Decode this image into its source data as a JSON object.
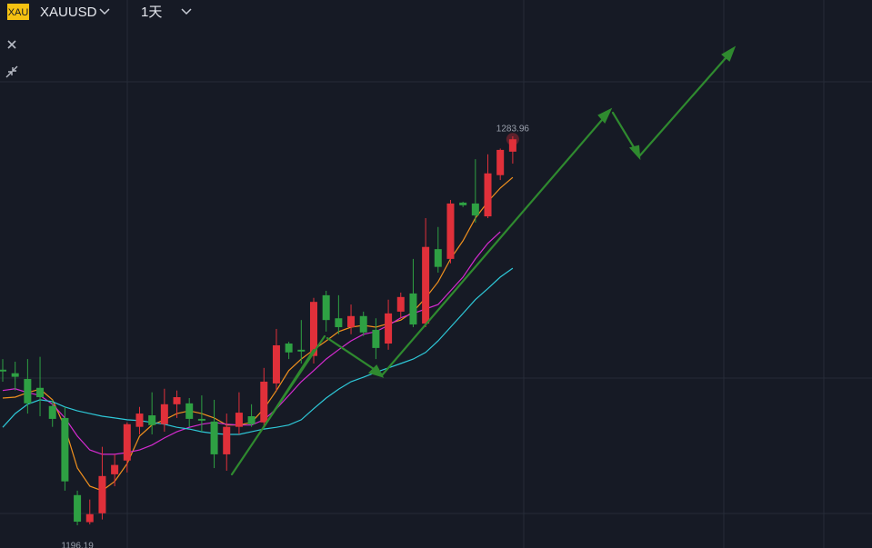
{
  "header": {
    "badge": "XAU",
    "symbol": "XAUUSD",
    "interval": "1天"
  },
  "chart_data": {
    "type": "candlestick",
    "up_color": "#e0303a",
    "down_color": "#2ea043",
    "open": [
      1231.3,
      1230.5,
      1229.2,
      1227.2,
      1223.1,
      1220.4,
      1203.0,
      1196.9,
      1198.9,
      1207.7,
      1210.8,
      1218.4,
      1221.0,
      1219.0,
      1223.5,
      1223.7,
      1220.2,
      1219.6,
      1212.2,
      1218.4,
      1220.8,
      1219.4,
      1228.2,
      1237.2,
      1235.8,
      1234.4,
      1248.1,
      1242.9,
      1240.9,
      1243.4,
      1240.3,
      1237.2,
      1244.4,
      1248.5,
      1241.7,
      1258.5,
      1256.3,
      1269.0,
      1268.8,
      1265.9,
      1275.2,
      1280.5
    ],
    "high": [
      1233.7,
      1233.1,
      1233.7,
      1234.2,
      1224.5,
      1222.9,
      1204.0,
      1202.0,
      1213.9,
      1212.2,
      1219.4,
      1222.9,
      1226.2,
      1227.0,
      1226.6,
      1224.9,
      1225.5,
      1224.5,
      1221.4,
      1226.2,
      1223.5,
      1231.7,
      1240.5,
      1237.6,
      1242.5,
      1247.5,
      1249.1,
      1248.1,
      1246.0,
      1244.4,
      1242.9,
      1247.1,
      1248.7,
      1256.3,
      1265.5,
      1263.5,
      1269.6,
      1269.2,
      1278.8,
      1279.9,
      1281.2,
      1283.96
    ],
    "low": [
      1228.6,
      1226.6,
      1221.4,
      1220.8,
      1218.4,
      1204.0,
      1196.19,
      1196.4,
      1197.5,
      1205.0,
      1208.1,
      1216.7,
      1216.7,
      1217.3,
      1220.4,
      1218.4,
      1217.3,
      1209.1,
      1208.5,
      1216.7,
      1218.4,
      1218.4,
      1226.6,
      1233.7,
      1232.7,
      1232.7,
      1239.9,
      1239.3,
      1239.3,
      1238.9,
      1233.7,
      1235.8,
      1242.9,
      1240.9,
      1240.9,
      1253.2,
      1255.3,
      1268.0,
      1264.5,
      1265.5,
      1274.1,
      1277.8
    ],
    "close": [
      1230.9,
      1229.7,
      1223.7,
      1225.1,
      1220.2,
      1206.1,
      1197.0,
      1198.7,
      1207.3,
      1209.8,
      1219.0,
      1221.4,
      1218.8,
      1223.5,
      1225.1,
      1220.2,
      1219.8,
      1212.2,
      1218.4,
      1221.6,
      1219.0,
      1228.6,
      1236.8,
      1235.2,
      1235.4,
      1246.6,
      1242.5,
      1240.9,
      1243.4,
      1239.7,
      1236.2,
      1244.0,
      1247.7,
      1241.5,
      1259.0,
      1254.5,
      1268.8,
      1268.4,
      1266.1,
      1275.6,
      1280.9,
      1283.3
    ],
    "series": [
      {
        "color": "#f0901e",
        "values": [
          1224.9,
          1225.1,
          1226.1,
          1226.9,
          1224.5,
          1218.3,
          1209.1,
          1205.0,
          1204.0,
          1206.1,
          1210.1,
          1216.3,
          1218.8,
          1220.0,
          1221.4,
          1222.0,
          1221.4,
          1220.4,
          1218.8,
          1218.8,
          1219.4,
          1222.5,
          1226.6,
          1231.1,
          1233.7,
          1235.8,
          1237.8,
          1239.9,
          1240.9,
          1241.3,
          1240.9,
          1241.7,
          1242.5,
          1244.4,
          1247.5,
          1251.1,
          1256.3,
          1260.4,
          1265.5,
          1269.2,
          1272.3,
          1274.7
        ]
      },
      {
        "color": "#d52bd0",
        "values": [
          1226.6,
          1227.0,
          1226.1,
          1225.5,
          1223.5,
          1220.4,
          1216.3,
          1213.2,
          1212.2,
          1212.2,
          1212.6,
          1213.2,
          1214.3,
          1215.9,
          1217.3,
          1218.3,
          1219.0,
          1219.4,
          1219.0,
          1218.8,
          1218.8,
          1220.0,
          1222.5,
          1225.5,
          1228.6,
          1231.1,
          1233.7,
          1235.8,
          1237.8,
          1239.3,
          1239.9,
          1241.3,
          1243.0,
          1244.0,
          1245.0,
          1246.0,
          1249.1,
          1252.2,
          1256.3,
          1259.8,
          1262.4,
          null
        ]
      },
      {
        "color": "#2ec8d8",
        "values": [
          1218.3,
          1221.4,
          1223.5,
          1224.5,
          1224.1,
          1222.9,
          1222.0,
          1221.4,
          1220.8,
          1220.4,
          1220.0,
          1219.8,
          1219.4,
          1219.0,
          1218.3,
          1217.9,
          1217.3,
          1216.9,
          1216.7,
          1216.7,
          1217.3,
          1217.9,
          1218.3,
          1218.8,
          1220.0,
          1222.5,
          1224.9,
          1226.9,
          1228.6,
          1229.6,
          1230.7,
          1231.7,
          1232.7,
          1233.7,
          1235.2,
          1237.8,
          1240.9,
          1244.0,
          1247.1,
          1249.6,
          1252.2,
          1254.2
        ]
      }
    ]
  }
}
